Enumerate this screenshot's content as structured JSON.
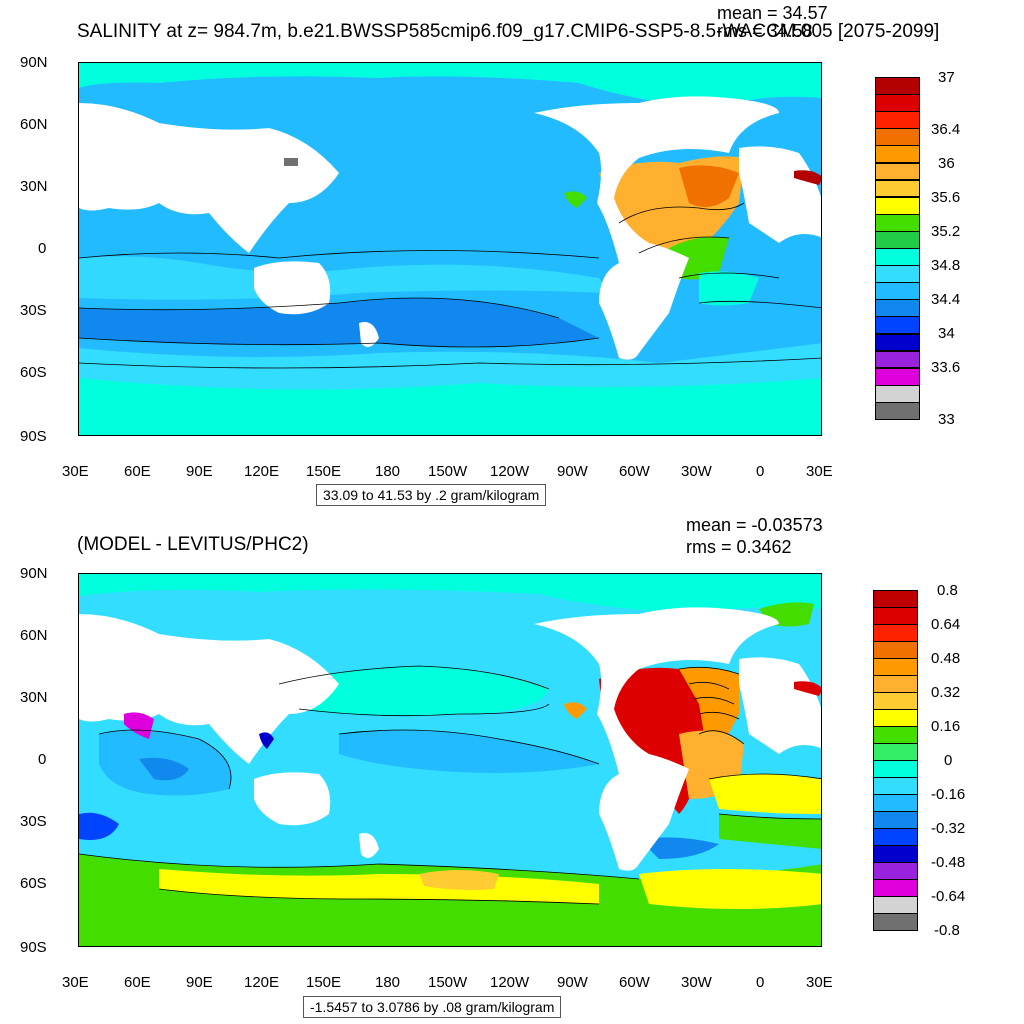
{
  "panel1": {
    "title": "SALINITY at z= 984.7m, b.e21.BWSSP585cmip6.f09_g17.CMIP6-SSP5-8.5-WACCM.005 [2075-2099]",
    "mean_text": "mean = 34.57",
    "rms_text": "rms = 34.58",
    "contour_info": "33.09 to 41.53 by .2 gram/kilogram",
    "colorbar": {
      "labels": [
        "37",
        "36.4",
        "36",
        "35.6",
        "35.2",
        "34.8",
        "34.4",
        "34",
        "33.6",
        "33"
      ],
      "colors": [
        "#b30000",
        "#dd0000",
        "#ff2200",
        "#f07000",
        "#ff9900",
        "#ffb02e",
        "#ffcc33",
        "#ffff00",
        "#44dd00",
        "#22cc44",
        "#00ffdd",
        "#33ddff",
        "#22bbff",
        "#1188ee",
        "#0044ff",
        "#0000cc",
        "#9922dd",
        "#dd00dd",
        "#d3d3d3",
        "#707070"
      ]
    }
  },
  "panel2": {
    "title": "(MODEL - LEVITUS/PHC2)",
    "mean_text": "mean = -0.03573",
    "rms_text": "rms = 0.3462",
    "contour_info": "-1.5457 to 3.0786 by .08 gram/kilogram",
    "colorbar": {
      "labels": [
        "0.8",
        "0.64",
        "0.48",
        "0.32",
        "0.16",
        "0",
        "-0.16",
        "-0.32",
        "-0.48",
        "-0.64",
        "-0.8"
      ],
      "colors": [
        "#c00000",
        "#dd0000",
        "#ff2200",
        "#f07000",
        "#ff9900",
        "#ffb02e",
        "#ffcc33",
        "#ffff00",
        "#44dd00",
        "#33ee66",
        "#00ffdd",
        "#33ddff",
        "#22bbff",
        "#1188ee",
        "#0044ff",
        "#0000cc",
        "#9922dd",
        "#dd00dd",
        "#d3d3d3",
        "#707070"
      ]
    }
  },
  "axes": {
    "lat_labels": [
      "90N",
      "60N",
      "30N",
      "0",
      "30S",
      "60S",
      "90S"
    ],
    "lon_labels": [
      "30E",
      "60E",
      "90E",
      "120E",
      "150E",
      "180",
      "150W",
      "120W",
      "90W",
      "60W",
      "30W",
      "0",
      "30E"
    ]
  }
}
